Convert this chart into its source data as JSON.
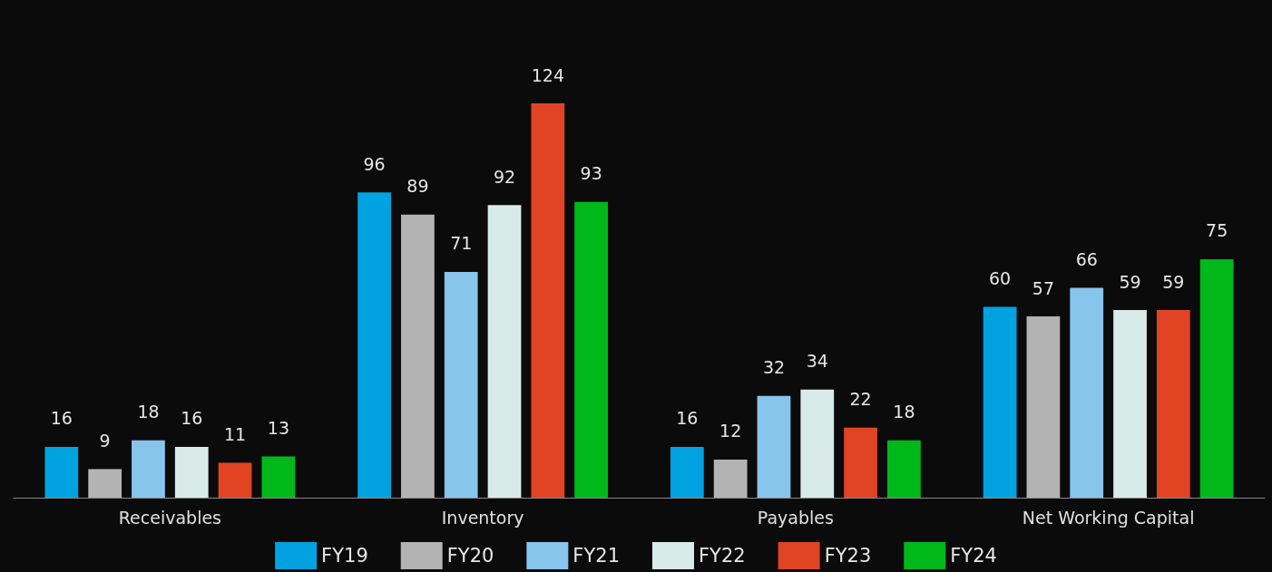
{
  "chart_data": {
    "type": "bar",
    "categories": [
      "Receivables",
      "Inventory",
      "Payables",
      "Net Working Capital"
    ],
    "series": [
      {
        "name": "FY19",
        "color": "#00a3e0",
        "values": [
          16,
          96,
          16,
          60
        ]
      },
      {
        "name": "FY20",
        "color": "#b3b3b3",
        "values": [
          9,
          89,
          12,
          57
        ]
      },
      {
        "name": "FY21",
        "color": "#88c5ec",
        "values": [
          18,
          71,
          32,
          66
        ]
      },
      {
        "name": "FY22",
        "color": "#d8ebe9",
        "values": [
          16,
          92,
          34,
          59
        ]
      },
      {
        "name": "FY23",
        "color": "#e04422",
        "values": [
          11,
          124,
          22,
          59
        ]
      },
      {
        "name": "FY24",
        "color": "#00b81a",
        "values": [
          13,
          93,
          18,
          75
        ]
      }
    ],
    "data_labels": true,
    "legend": "bottom"
  }
}
